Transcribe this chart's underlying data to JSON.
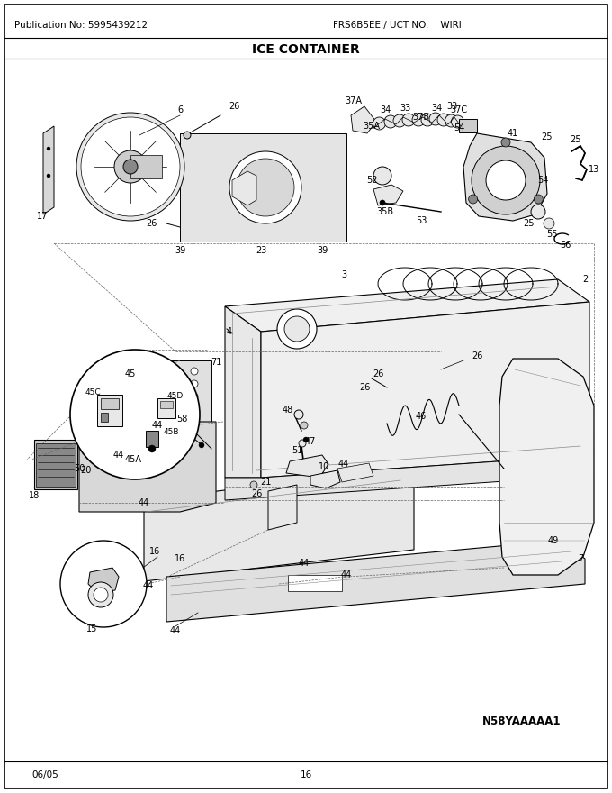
{
  "title": "ICE CONTAINER",
  "header_left": "Publication No: 5995439212",
  "header_right": "FRS6B5EE / UCT NO.    WIRI",
  "footer_left": "06/05",
  "footer_center": "16",
  "diagram_id": "N58YAAAAA1",
  "bg_color": "#ffffff",
  "border_color": "#000000",
  "text_color": "#000000",
  "fig_width": 6.8,
  "fig_height": 8.8,
  "dpi": 100
}
